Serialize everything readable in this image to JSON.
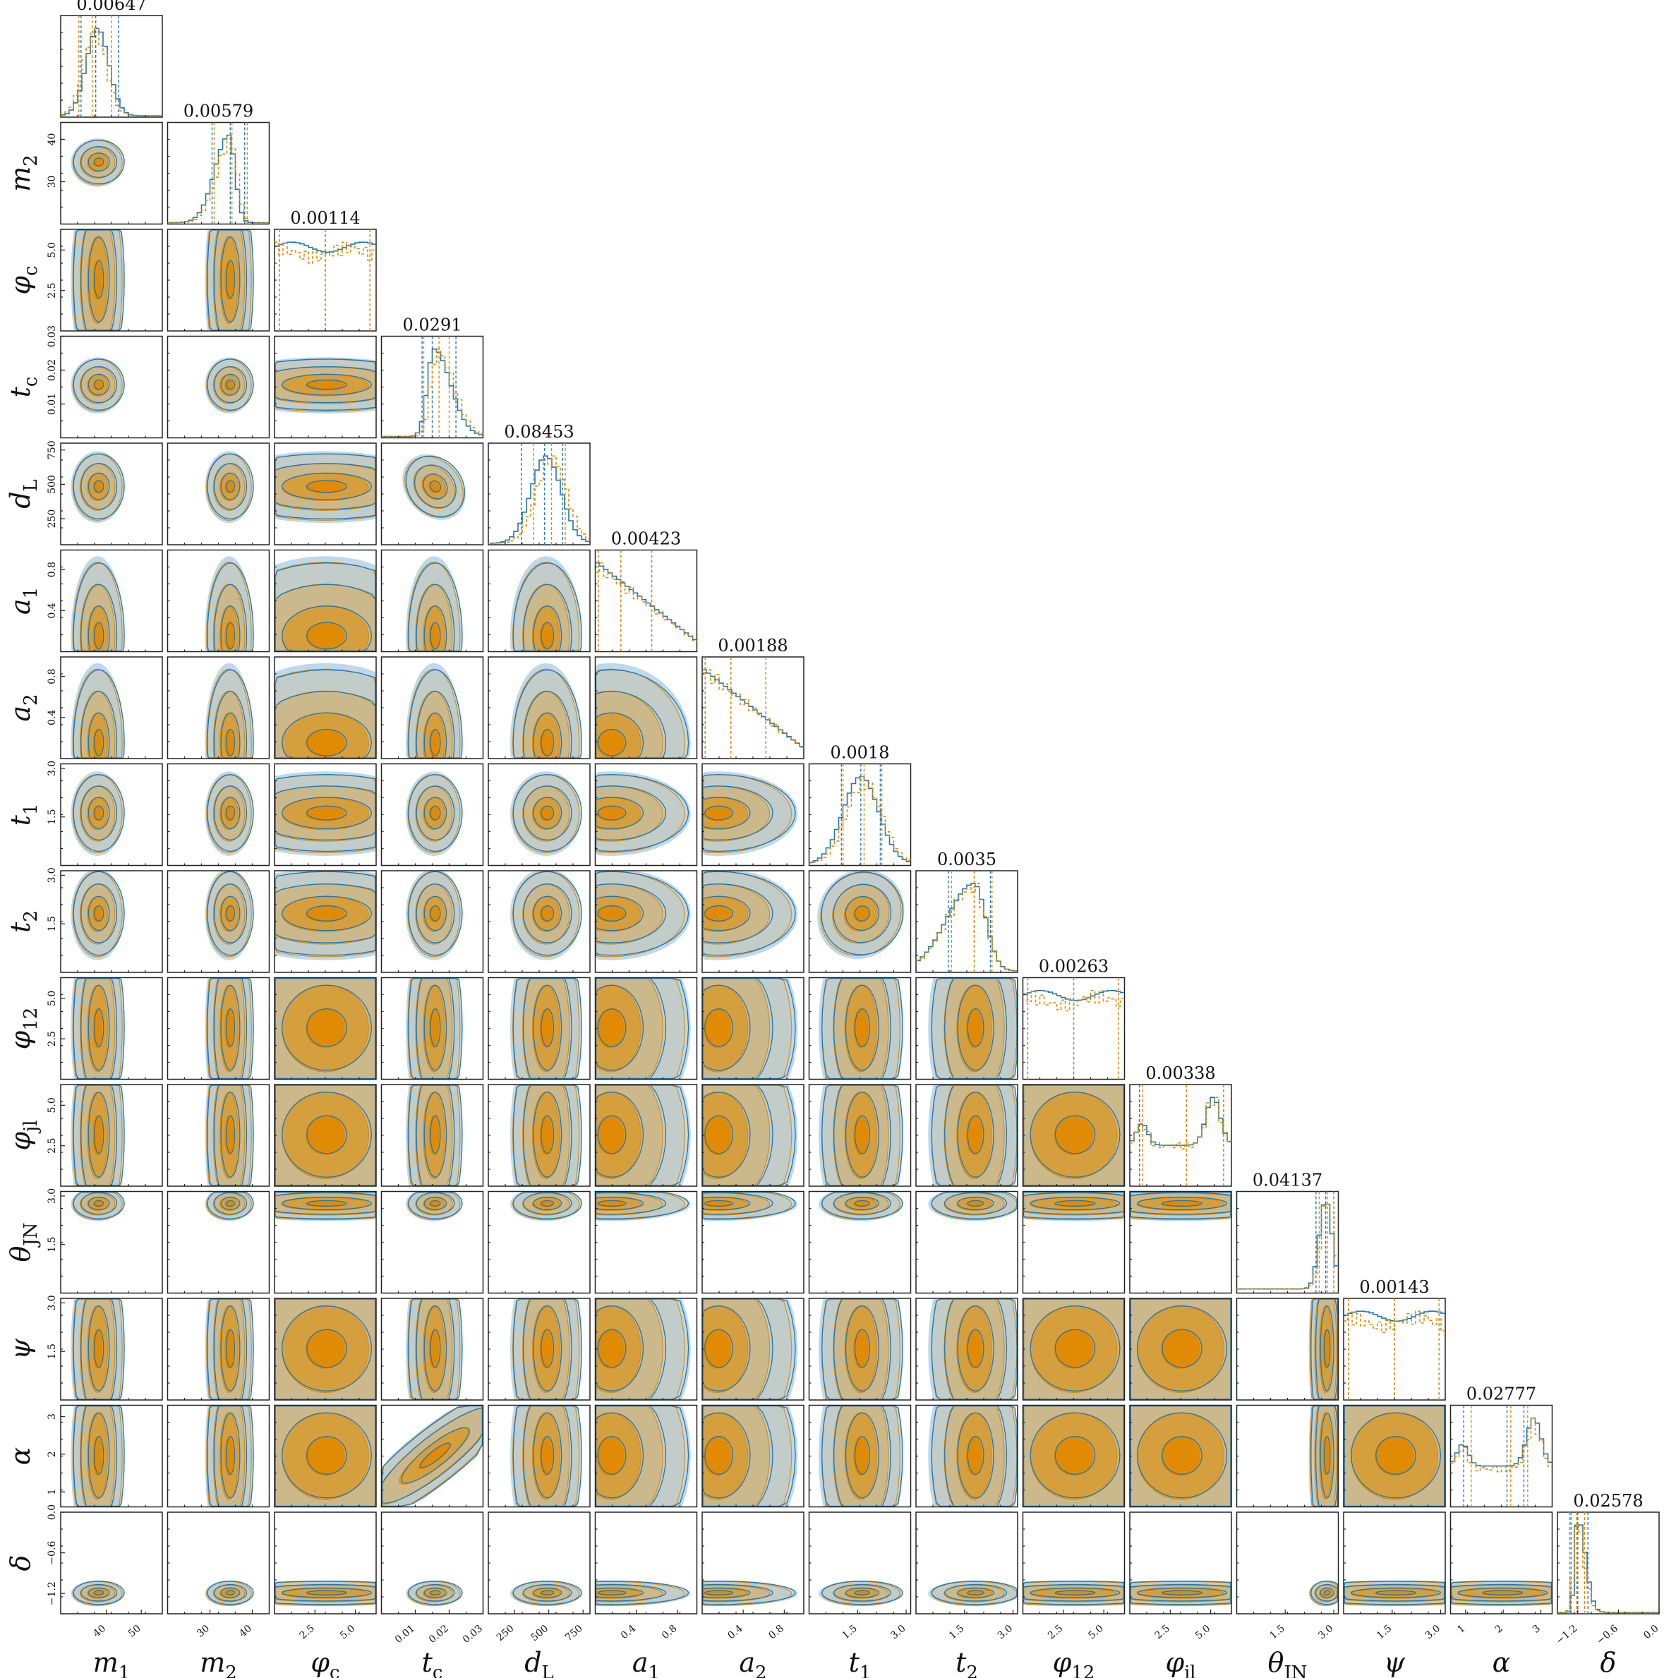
{
  "chart_data": {
    "type": "corner",
    "series": [
      {
        "name": "",
        "color": "#1f77b4",
        "fill_color": "#b7d4ea",
        "line_style": "solid"
      },
      {
        "name": "",
        "color": "#e08a00",
        "fill_color": "#e08a00",
        "line_style": "dashed"
      }
    ],
    "parameters": [
      {
        "name": "m_1",
        "label": "m",
        "sub": "1",
        "range": [
          27,
          56
        ],
        "ticks": [
          40,
          50
        ],
        "tick_labels": [
          "40",
          "50"
        ],
        "mean": 37.5,
        "sd": 3.2,
        "orange_mean": 36.8,
        "blue_q": [
          32.8,
          37.0,
          43.5
        ],
        "orange_q": [
          32.2,
          36.0,
          41.5
        ],
        "top_value": "0.00647",
        "shape": "normal"
      },
      {
        "name": "m_2",
        "label": "m",
        "sub": "2",
        "range": [
          20,
          44
        ],
        "ticks": [
          30,
          40
        ],
        "tick_labels": [
          "30",
          "40"
        ],
        "mean": 34.5,
        "sd": 2.4,
        "orange_mean": 35.0,
        "blue_q": [
          30.5,
          34.8,
          38.2
        ],
        "orange_q": [
          31.0,
          35.2,
          38.8
        ],
        "top_value": "0.00579",
        "shape": "skewleft"
      },
      {
        "name": "phi_c",
        "label": "φ",
        "sub": "c",
        "range": [
          0,
          6.28
        ],
        "ticks": [
          2.5,
          5.0
        ],
        "tick_labels": [
          "2.5",
          "5.0"
        ],
        "mean": 3.14,
        "sd": 2.0,
        "orange_mean": 3.14,
        "blue_q": [
          0.3,
          3.14,
          5.9
        ],
        "orange_q": [
          0.3,
          3.14,
          5.9
        ],
        "top_value": "0.00114",
        "shape": "flat"
      },
      {
        "name": "t_c",
        "label": "t",
        "sub": "c",
        "range": [
          0.0,
          0.03
        ],
        "ticks": [
          0.01,
          0.02,
          0.03
        ],
        "tick_labels": [
          "0.01",
          "0.02",
          "0.03"
        ],
        "mean": 0.0155,
        "sd": 0.0035,
        "orange_mean": 0.0165,
        "blue_q": [
          0.012,
          0.015,
          0.022
        ],
        "orange_q": [
          0.0125,
          0.017,
          0.02
        ],
        "top_value": "0.0291",
        "shape": "skewright"
      },
      {
        "name": "d_L",
        "label": "d",
        "sub": "L",
        "range": [
          60,
          800
        ],
        "ticks": [
          250,
          500,
          750
        ],
        "tick_labels": [
          "250",
          "500",
          "750"
        ],
        "mean": 480,
        "sd": 110,
        "orange_mean": 520,
        "blue_q": [
          300,
          470,
          600
        ],
        "orange_q": [
          390,
          520,
          620
        ],
        "top_value": "0.08453",
        "shape": "normal"
      },
      {
        "name": "a_1",
        "label": "a",
        "sub": "1",
        "range": [
          0,
          0.99
        ],
        "ticks": [
          0.4,
          0.8
        ],
        "tick_labels": [
          "0.4",
          "0.8"
        ],
        "mean": 0.0,
        "sd": 0.45,
        "orange_mean": 0.0,
        "blue_q": [
          0.03,
          0.25,
          0.55
        ],
        "orange_q": [
          0.03,
          0.25,
          0.55
        ],
        "top_value": "0.00423",
        "shape": "decay"
      },
      {
        "name": "a_2",
        "label": "a",
        "sub": "2",
        "range": [
          0,
          0.99
        ],
        "ticks": [
          0.4,
          0.8
        ],
        "tick_labels": [
          "0.4",
          "0.8"
        ],
        "mean": 0.0,
        "sd": 0.5,
        "orange_mean": 0.0,
        "blue_q": [
          0.03,
          0.28,
          0.62
        ],
        "orange_q": [
          0.03,
          0.28,
          0.62
        ],
        "top_value": "0.00188",
        "shape": "decay"
      },
      {
        "name": "t_1",
        "label": "t",
        "sub": "1",
        "range": [
          0,
          3.14
        ],
        "ticks": [
          1.5,
          3.0
        ],
        "tick_labels": [
          "1.5",
          "3.0"
        ],
        "mean": 1.6,
        "sd": 0.55,
        "orange_mean": 1.7,
        "blue_q": [
          1.0,
          1.6,
          2.2
        ],
        "orange_q": [
          1.05,
          1.7,
          2.25
        ],
        "top_value": "0.0018",
        "shape": "normal"
      },
      {
        "name": "t_2",
        "label": "t",
        "sub": "2",
        "range": [
          0,
          3.14
        ],
        "ticks": [
          1.5,
          3.0
        ],
        "tick_labels": [
          "1.5",
          "3.0"
        ],
        "mean": 1.8,
        "sd": 0.6,
        "orange_mean": 1.8,
        "blue_q": [
          1.0,
          1.8,
          2.3
        ],
        "orange_q": [
          1.1,
          1.8,
          2.35
        ],
        "top_value": "0.0035",
        "shape": "skewleft"
      },
      {
        "name": "phi_12",
        "label": "φ",
        "sub": "12",
        "range": [
          0,
          6.28
        ],
        "ticks": [
          2.5,
          5.0
        ],
        "tick_labels": [
          "2.5",
          "5.0"
        ],
        "mean": 3.14,
        "sd": 2.0,
        "orange_mean": 3.14,
        "blue_q": [
          0.3,
          3.14,
          5.9
        ],
        "orange_q": [
          0.3,
          3.14,
          5.9
        ],
        "top_value": "0.00263",
        "shape": "flat"
      },
      {
        "name": "phi_jl",
        "label": "φ",
        "sub": "jl",
        "range": [
          0,
          6.28
        ],
        "ticks": [
          2.5,
          5.0
        ],
        "tick_labels": [
          "2.5",
          "5.0"
        ],
        "mean": 3.14,
        "sd": 2.0,
        "orange_mean": 3.14,
        "blue_q": [
          0.6,
          3.5,
          5.8
        ],
        "orange_q": [
          0.8,
          3.5,
          5.8
        ],
        "top_value": "0.00338",
        "shape": "bimodal"
      },
      {
        "name": "theta_JN",
        "label": "θ",
        "sub": "JN",
        "range": [
          0,
          3.14
        ],
        "ticks": [
          1.5,
          3.0
        ],
        "tick_labels": [
          "1.5",
          "3.0"
        ],
        "mean": 2.75,
        "sd": 0.22,
        "orange_mean": 2.8,
        "blue_q": [
          2.45,
          2.75,
          3.0
        ],
        "orange_q": [
          2.55,
          2.8,
          3.0
        ],
        "top_value": "0.04137",
        "shape": "edge"
      },
      {
        "name": "psi",
        "label": "ψ",
        "sub": "",
        "range": [
          0,
          3.14
        ],
        "ticks": [
          1.5,
          3.0
        ],
        "tick_labels": [
          "1.5",
          "3.0"
        ],
        "mean": 1.57,
        "sd": 1.0,
        "orange_mean": 1.57,
        "blue_q": [
          0.15,
          1.57,
          2.95
        ],
        "orange_q": [
          0.15,
          1.57,
          2.95
        ],
        "top_value": "0.00143",
        "shape": "flat"
      },
      {
        "name": "alpha",
        "label": "α",
        "sub": "",
        "range": [
          0.6,
          3.3
        ],
        "ticks": [
          1,
          2,
          3
        ],
        "tick_labels": [
          "1",
          "2",
          "3"
        ],
        "mean": 2.2,
        "sd": 0.6,
        "orange_mean": 2.2,
        "blue_q": [
          0.95,
          2.1,
          2.55
        ],
        "orange_q": [
          1.15,
          2.2,
          2.65
        ],
        "top_value": "0.02777",
        "shape": "bimodal"
      },
      {
        "name": "delta",
        "label": "δ",
        "sub": "",
        "range": [
          -1.5,
          0.0
        ],
        "ticks": [
          -1.2,
          -0.6,
          0.0
        ],
        "tick_labels": [
          "−1.2",
          "−0.6",
          "0.0"
        ],
        "mean": -1.2,
        "sd": 0.08,
        "orange_mean": -1.22,
        "blue_q": [
          -1.3,
          -1.2,
          -1.05
        ],
        "orange_q": [
          -1.32,
          -1.22,
          -1.1
        ],
        "top_value": "0.02578",
        "shape": "skewright"
      }
    ],
    "row_ticks": {
      "m_2": {
        "ticks": [
          30,
          40
        ],
        "labels": [
          "30",
          "40"
        ]
      },
      "phi_c": {
        "ticks": [
          2.5,
          5.0
        ],
        "labels": [
          "2.5",
          "5.0"
        ]
      },
      "t_c": {
        "ticks": [
          0.01,
          0.02,
          0.03
        ],
        "labels": [
          "0.01",
          "0.02",
          "0.03"
        ]
      },
      "d_L": {
        "ticks": [
          250,
          500,
          750
        ],
        "labels": [
          "250",
          "500",
          "750"
        ]
      },
      "a_1": {
        "ticks": [
          0.4,
          0.8
        ],
        "labels": [
          "0.4",
          "0.8"
        ]
      },
      "a_2": {
        "ticks": [
          0.4,
          0.8
        ],
        "labels": [
          "0.4",
          "0.8"
        ]
      },
      "t_1": {
        "ticks": [
          1.5,
          3.0
        ],
        "labels": [
          "1.5",
          "3.0"
        ]
      },
      "t_2": {
        "ticks": [
          1.5,
          3.0
        ],
        "labels": [
          "1.5",
          "3.0"
        ]
      },
      "phi_12": {
        "ticks": [
          2.5,
          5.0
        ],
        "labels": [
          "2.5",
          "5.0"
        ]
      },
      "phi_jl": {
        "ticks": [
          2.5,
          5.0
        ],
        "labels": [
          "2.5",
          "5.0"
        ]
      },
      "theta_JN": {
        "ticks": [
          1.5,
          3.0
        ],
        "labels": [
          "1.5",
          "3.0"
        ]
      },
      "psi": {
        "ticks": [
          1.5,
          3.0
        ],
        "labels": [
          "1.5",
          "3.0"
        ]
      },
      "alpha": {
        "ticks": [
          1,
          2,
          3
        ],
        "labels": [
          "1",
          "2",
          "3"
        ]
      },
      "delta": {
        "ticks": [
          -1.2,
          -0.6,
          0.0
        ],
        "labels": [
          "−1.2",
          "−0.6",
          "0.0"
        ]
      }
    }
  }
}
